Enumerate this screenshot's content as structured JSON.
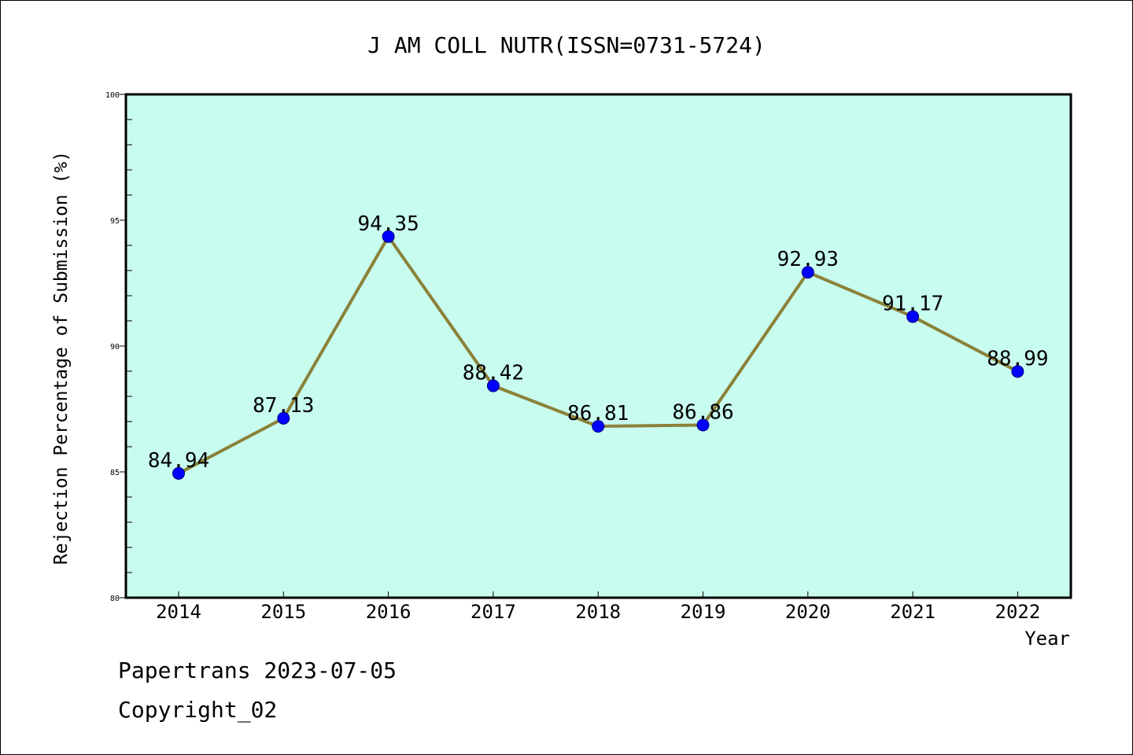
{
  "footer": {
    "line1": "Papertrans 2023-07-05",
    "line2": "Copyright_02"
  },
  "chart_data": {
    "type": "line",
    "title": "J AM COLL NUTR(ISSN=0731-5724)",
    "xlabel": "Year",
    "ylabel": "Rejection Percentage of Submission (%)",
    "categories": [
      "2014",
      "2015",
      "2016",
      "2017",
      "2018",
      "2019",
      "2020",
      "2021",
      "2022"
    ],
    "series": [
      {
        "values": [
          84.94,
          87.13,
          94.35,
          88.42,
          86.81,
          86.86,
          92.93,
          91.17,
          88.99
        ],
        "data_labels": [
          "84.94",
          "87.13",
          "94.35",
          "88.42",
          "86.81",
          "86.86",
          "92.93",
          "91.17",
          "88.99"
        ]
      }
    ],
    "ylim": [
      80,
      100
    ],
    "yticks": [
      80,
      85,
      90,
      95,
      100
    ],
    "grid": false,
    "legend": "none",
    "colors": {
      "plot_background": "#c8fcee",
      "line": "#8b8139",
      "marker_fill": "#0000ff",
      "marker_edge": "#000080"
    }
  }
}
